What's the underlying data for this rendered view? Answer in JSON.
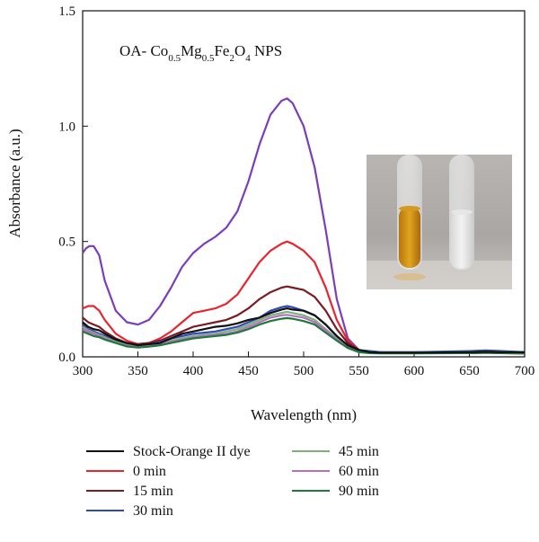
{
  "chart_data": {
    "type": "line",
    "title": "",
    "annotation": {
      "prefix": "OA- Co",
      "sub1": "0.5",
      "mid1": "Mg",
      "sub2": "0.5",
      "mid2": "Fe",
      "sub3": "2",
      "mid3": "O",
      "sub4": "4",
      "suffix": " NPS"
    },
    "xlabel": "Wavelength (nm)",
    "ylabel": "Absorbance (a.u.)",
    "xlim": [
      300,
      700
    ],
    "ylim": [
      0,
      1.5
    ],
    "x_ticks": [
      "300",
      "350",
      "400",
      "450",
      "500",
      "550",
      "600",
      "650",
      "700"
    ],
    "y_ticks": [
      "0.0",
      "0.5",
      "1.0",
      "1.5"
    ],
    "grid": false,
    "legend_position": "bottom",
    "inset": "photo of two test tubes: orange dye solution (left) and clear treated solution (right)",
    "series": [
      {
        "name": "Stock-Orange II dye",
        "color": "#111111",
        "x": [
          300,
          305,
          310,
          315,
          320,
          330,
          340,
          350,
          360,
          370,
          380,
          390,
          400,
          410,
          420,
          430,
          440,
          450,
          460,
          470,
          480,
          485,
          490,
          500,
          510,
          520,
          530,
          540,
          550,
          560,
          570,
          600,
          650,
          665,
          680,
          700
        ],
        "y": [
          0.15,
          0.13,
          0.12,
          0.115,
          0.1,
          0.075,
          0.06,
          0.05,
          0.055,
          0.06,
          0.08,
          0.1,
          0.11,
          0.12,
          0.13,
          0.135,
          0.145,
          0.16,
          0.17,
          0.19,
          0.205,
          0.21,
          0.205,
          0.2,
          0.18,
          0.14,
          0.09,
          0.05,
          0.03,
          0.02,
          0.018,
          0.018,
          0.02,
          0.022,
          0.02,
          0.02
        ]
      },
      {
        "name": "0 min",
        "color": "#e8252f",
        "x": [
          300,
          305,
          310,
          315,
          320,
          330,
          340,
          350,
          360,
          370,
          380,
          390,
          400,
          410,
          420,
          430,
          440,
          450,
          460,
          470,
          480,
          485,
          490,
          500,
          510,
          520,
          530,
          540,
          550,
          560,
          570,
          600,
          650,
          665,
          680,
          700
        ],
        "y": [
          0.21,
          0.22,
          0.22,
          0.2,
          0.16,
          0.1,
          0.07,
          0.055,
          0.06,
          0.08,
          0.11,
          0.15,
          0.19,
          0.2,
          0.21,
          0.23,
          0.27,
          0.34,
          0.41,
          0.46,
          0.49,
          0.5,
          0.49,
          0.46,
          0.41,
          0.3,
          0.16,
          0.07,
          0.03,
          0.02,
          0.018,
          0.016,
          0.016,
          0.018,
          0.016,
          0.015
        ]
      },
      {
        "name": "15 min",
        "color": "#7b1b24",
        "x": [
          300,
          305,
          310,
          315,
          320,
          330,
          340,
          350,
          360,
          370,
          380,
          390,
          400,
          410,
          420,
          430,
          440,
          450,
          460,
          470,
          480,
          485,
          490,
          500,
          510,
          520,
          530,
          540,
          550,
          560,
          570,
          600,
          650,
          665,
          680,
          700
        ],
        "y": [
          0.17,
          0.15,
          0.14,
          0.13,
          0.11,
          0.08,
          0.06,
          0.055,
          0.06,
          0.07,
          0.09,
          0.11,
          0.13,
          0.14,
          0.15,
          0.16,
          0.18,
          0.21,
          0.25,
          0.28,
          0.3,
          0.305,
          0.3,
          0.29,
          0.26,
          0.2,
          0.12,
          0.06,
          0.03,
          0.02,
          0.018,
          0.016,
          0.016,
          0.018,
          0.016,
          0.015
        ]
      },
      {
        "name": "30 min",
        "color": "#2e4bb5",
        "x": [
          300,
          305,
          310,
          315,
          320,
          330,
          340,
          350,
          360,
          370,
          380,
          390,
          400,
          410,
          420,
          430,
          440,
          450,
          460,
          470,
          480,
          485,
          490,
          500,
          510,
          520,
          530,
          540,
          550,
          560,
          570,
          600,
          650,
          665,
          680,
          700
        ],
        "y": [
          0.14,
          0.12,
          0.11,
          0.1,
          0.09,
          0.07,
          0.055,
          0.05,
          0.055,
          0.065,
          0.08,
          0.09,
          0.1,
          0.105,
          0.11,
          0.12,
          0.13,
          0.15,
          0.17,
          0.2,
          0.215,
          0.22,
          0.215,
          0.2,
          0.18,
          0.14,
          0.09,
          0.05,
          0.03,
          0.025,
          0.02,
          0.02,
          0.025,
          0.028,
          0.025,
          0.02
        ]
      },
      {
        "name": "45 min",
        "color": "#7fb07a",
        "x": [
          300,
          305,
          310,
          315,
          320,
          330,
          340,
          350,
          360,
          370,
          380,
          390,
          400,
          410,
          420,
          430,
          440,
          450,
          460,
          470,
          480,
          485,
          490,
          500,
          510,
          520,
          530,
          540,
          550,
          560,
          570,
          600,
          650,
          665,
          680,
          700
        ],
        "y": [
          0.13,
          0.115,
          0.105,
          0.095,
          0.085,
          0.065,
          0.05,
          0.045,
          0.05,
          0.06,
          0.07,
          0.08,
          0.09,
          0.095,
          0.1,
          0.11,
          0.12,
          0.14,
          0.16,
          0.18,
          0.19,
          0.195,
          0.19,
          0.18,
          0.16,
          0.12,
          0.08,
          0.045,
          0.025,
          0.02,
          0.018,
          0.018,
          0.02,
          0.022,
          0.02,
          0.018
        ]
      },
      {
        "name": "60 min",
        "color": "#b76fc0",
        "x": [
          300,
          305,
          310,
          315,
          320,
          330,
          340,
          350,
          360,
          370,
          380,
          390,
          400,
          410,
          420,
          430,
          440,
          450,
          460,
          470,
          480,
          485,
          490,
          500,
          510,
          520,
          530,
          540,
          550,
          560,
          570,
          600,
          650,
          665,
          680,
          700
        ],
        "y": [
          0.12,
          0.11,
          0.1,
          0.09,
          0.08,
          0.06,
          0.048,
          0.042,
          0.046,
          0.055,
          0.065,
          0.075,
          0.085,
          0.09,
          0.095,
          0.1,
          0.11,
          0.13,
          0.15,
          0.17,
          0.18,
          0.182,
          0.178,
          0.17,
          0.15,
          0.115,
          0.075,
          0.04,
          0.022,
          0.018,
          0.016,
          0.016,
          0.018,
          0.02,
          0.018,
          0.016
        ]
      },
      {
        "name": "90 min",
        "color": "#1e7a3c",
        "x": [
          300,
          305,
          310,
          315,
          320,
          330,
          340,
          350,
          360,
          370,
          380,
          390,
          400,
          410,
          420,
          430,
          440,
          450,
          460,
          470,
          480,
          485,
          490,
          500,
          510,
          520,
          530,
          540,
          550,
          560,
          570,
          600,
          650,
          665,
          680,
          700
        ],
        "y": [
          0.11,
          0.1,
          0.09,
          0.085,
          0.075,
          0.06,
          0.045,
          0.04,
          0.044,
          0.05,
          0.06,
          0.07,
          0.08,
          0.085,
          0.09,
          0.095,
          0.105,
          0.12,
          0.14,
          0.155,
          0.165,
          0.168,
          0.165,
          0.155,
          0.14,
          0.105,
          0.07,
          0.038,
          0.02,
          0.016,
          0.015,
          0.015,
          0.016,
          0.018,
          0.016,
          0.015
        ]
      },
      {
        "name": "",
        "color": "#7a3fb8",
        "x": [
          300,
          303,
          306,
          310,
          315,
          320,
          330,
          340,
          350,
          360,
          370,
          380,
          390,
          400,
          410,
          420,
          430,
          440,
          450,
          460,
          470,
          480,
          485,
          490,
          500,
          510,
          520,
          530,
          540,
          550,
          560,
          570,
          600,
          650,
          665,
          680,
          700
        ],
        "y": [
          0.45,
          0.47,
          0.48,
          0.48,
          0.44,
          0.33,
          0.2,
          0.15,
          0.14,
          0.16,
          0.22,
          0.3,
          0.39,
          0.45,
          0.49,
          0.52,
          0.56,
          0.63,
          0.76,
          0.92,
          1.05,
          1.11,
          1.12,
          1.1,
          1.0,
          0.82,
          0.55,
          0.25,
          0.08,
          0.03,
          0.02,
          0.02,
          0.02,
          0.02,
          0.022,
          0.02,
          0.02
        ]
      }
    ]
  },
  "legend": {
    "col1": [
      {
        "label": "Stock-Orange II dye",
        "color": "#111111"
      },
      {
        "label": "0 min",
        "color": "#e8252f"
      },
      {
        "label": "15 min",
        "color": "#7b1b24"
      },
      {
        "label": "30 min",
        "color": "#2e4bb5"
      }
    ],
    "col2": [
      {
        "label": "45 min",
        "color": "#7fb07a"
      },
      {
        "label": "60 min",
        "color": "#b76fc0"
      },
      {
        "label": "90 min",
        "color": "#1e7a3c"
      }
    ]
  }
}
